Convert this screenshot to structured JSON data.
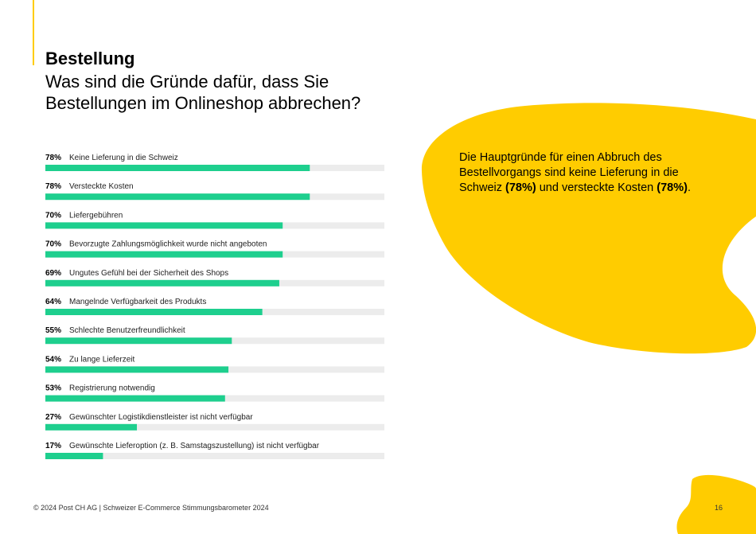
{
  "header": {
    "title": "Bestellung",
    "question": "Was sind die Gründe dafür, dass Sie Bestellungen im Onlineshop abbrechen?"
  },
  "colors": {
    "accent": "#ffcc00",
    "bar": "#1ecf8e",
    "track": "#ececec"
  },
  "chart_data": {
    "type": "bar",
    "orientation": "horizontal",
    "categories": [
      "Keine Lieferung in die Schweiz",
      "Versteckte Kosten",
      "Liefergebühren",
      "Bevorzugte Zahlungsmöglichkeit wurde nicht angeboten",
      "Ungutes Gefühl bei der Sicherheit des Shops",
      "Mangelnde Verfügbarkeit des Produkts",
      "Schlechte Benutzerfreundlichkeit",
      "Zu lange Lieferzeit",
      "Registrierung notwendig",
      "Gewünschter Logistikdienstleister ist nicht verfügbar",
      "Gewünschte Lieferoption (z. B. Samstagszustellung) ist nicht verfügbar"
    ],
    "values": [
      78,
      78,
      70,
      70,
      69,
      64,
      55,
      54,
      53,
      27,
      17
    ],
    "labels": [
      "78%",
      "78%",
      "70%",
      "70%",
      "69%",
      "64%",
      "55%",
      "54%",
      "53%",
      "27%",
      "17%"
    ],
    "xlim": [
      0,
      100
    ],
    "unit": "%"
  },
  "callout": {
    "part1": "Die Hauptgründe für einen Abbruch des Bestellvorgangs sind keine Lieferung in die Schweiz ",
    "bold1": "(78%)",
    "part2": " und versteckte Kosten ",
    "bold2": "(78%)",
    "part3": "."
  },
  "footer": {
    "text": "© 2024 Post CH AG | Schweizer E-Commerce Stimmungsbarometer 2024",
    "page": "16"
  }
}
